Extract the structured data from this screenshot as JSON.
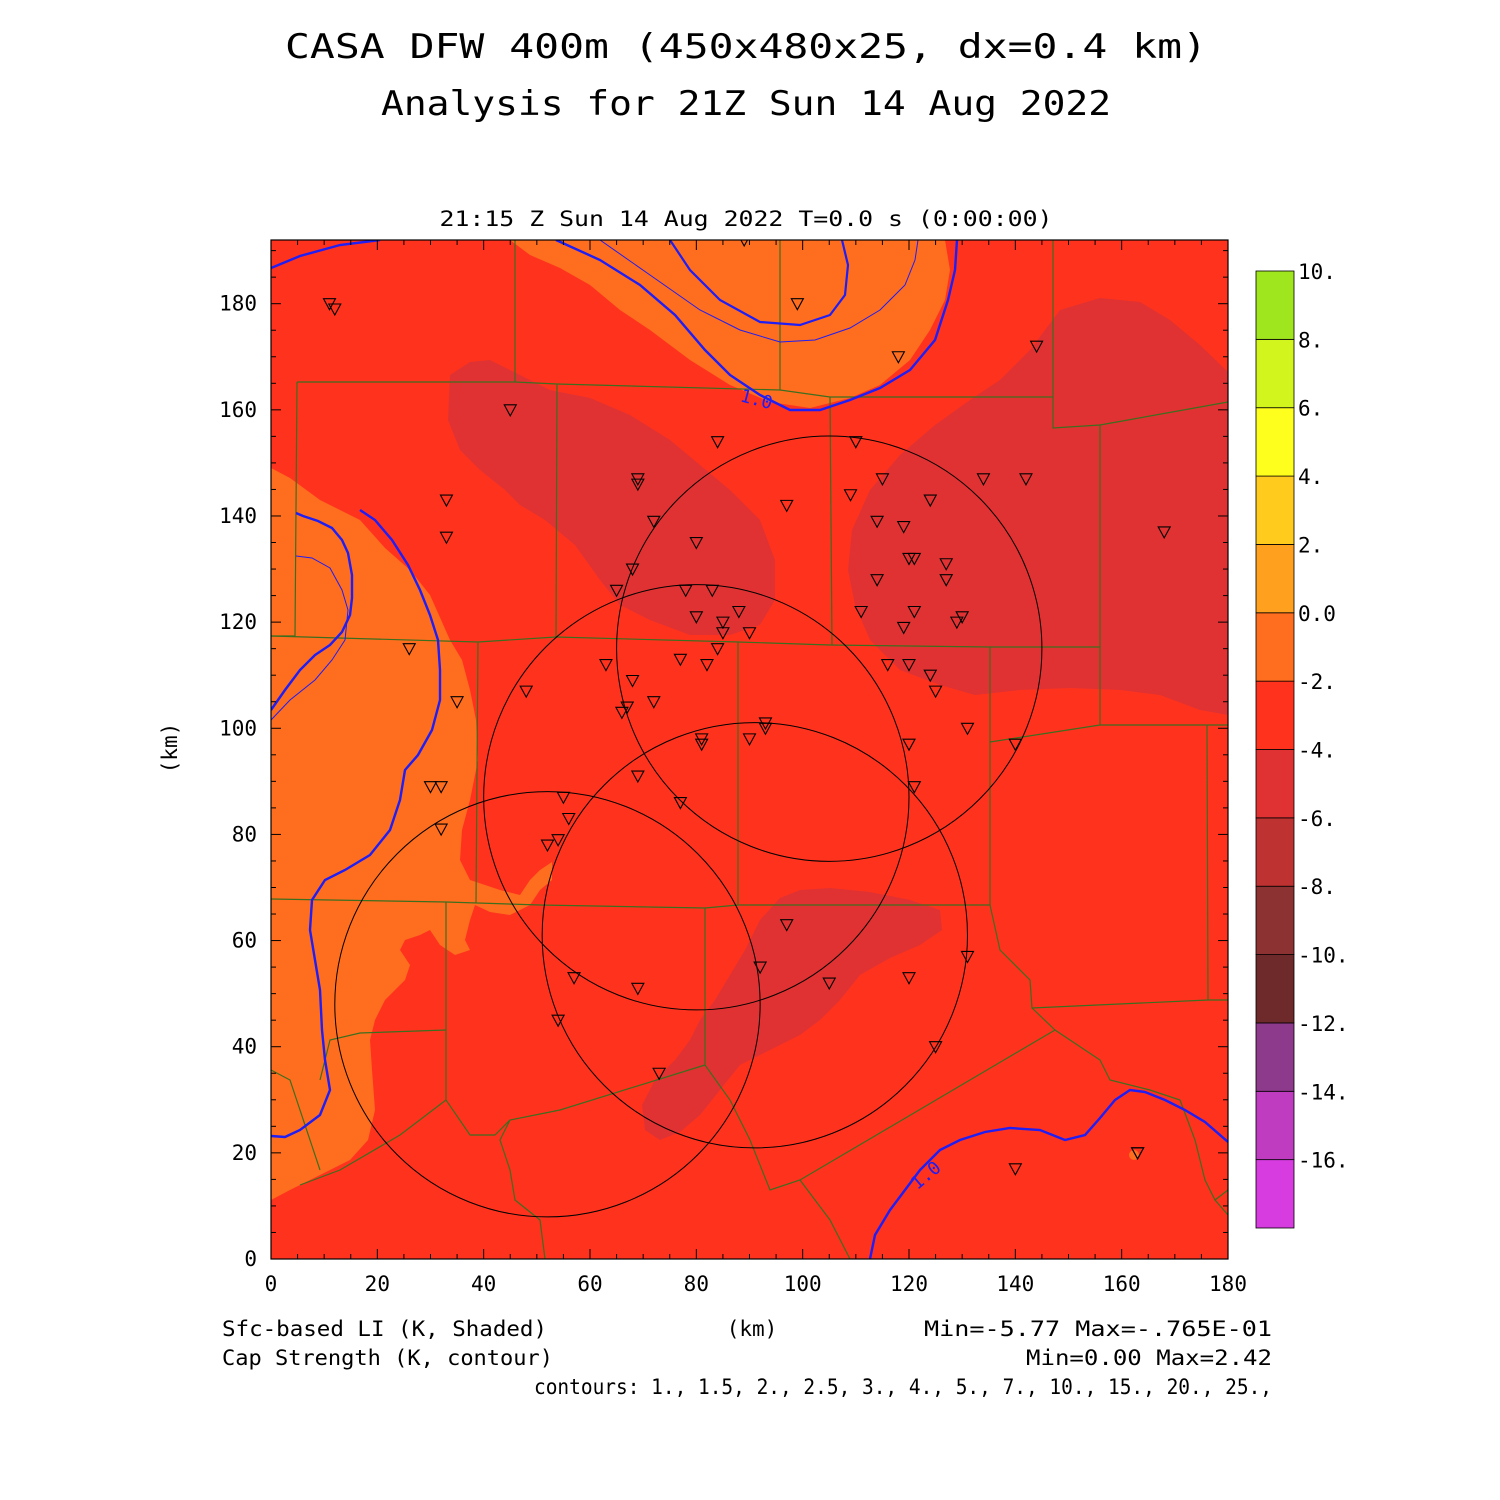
{
  "title_line1": "CASA DFW 400m (450x480x25, dx=0.4 km)",
  "title_line2": "Analysis for 21Z Sun 14 Aug 2022",
  "valid_time": "21:15 Z Sun 14 Aug 2022   T=0.0 s (0:00:00)",
  "xlabel": "(km)",
  "ylabel": "(km)",
  "footer": {
    "shaded_label": "Sfc-based LI (K, Shaded)",
    "contour_label": "Cap Strength (K, contour)",
    "shaded_minmax": "Min=-5.77 Max=-.765E-01",
    "contour_minmax": "Min=0.00 Max=2.42",
    "contours_list": "contours: 1., 1.5, 2., 2.5, 3., 4., 5., 7., 10., 15., 20., 25.,"
  },
  "contour_value_labels": [
    "1.0",
    "1.0"
  ],
  "chart_data": {
    "type": "heatmap",
    "xlim": [
      0,
      180
    ],
    "ylim": [
      0,
      192
    ],
    "x_ticks": [
      0,
      20,
      40,
      60,
      80,
      100,
      120,
      140,
      160,
      180
    ],
    "y_ticks": [
      0,
      20,
      40,
      60,
      80,
      100,
      120,
      140,
      160,
      180
    ],
    "colorbar": {
      "levels": [
        -16,
        -14,
        -12,
        -10,
        -8,
        -6,
        -4,
        -2,
        0,
        2,
        4,
        6,
        8,
        10
      ],
      "tick_labels": [
        "10.",
        "8.",
        "6.",
        "4.",
        "2.",
        "0.0",
        "-2.",
        "-4.",
        "-6.",
        "-8.",
        "-10.",
        "-12.",
        "-14.",
        "-16."
      ],
      "colors": [
        "#d63ce0",
        "#bf3cc0",
        "#8e3a8c",
        "#6e2a2a",
        "#8c3232",
        "#bf3232",
        "#e03232",
        "#ff321e",
        "#ff6e1e",
        "#ffa01e",
        "#ffcc1e",
        "#ffff1e",
        "#d2f51e",
        "#a0e61e"
      ]
    },
    "shaded_regions_level_bands": [
      "-4 to -2",
      "-6 to -4",
      "-2 to 0"
    ],
    "shaded_min": -5.77,
    "shaded_max": -0.0765,
    "contour_min": 0.0,
    "contour_max": 2.42,
    "radar_circles_km": [
      {
        "cx": 52,
        "cy": 48,
        "r": 40
      },
      {
        "cx": 80,
        "cy": 87,
        "r": 40
      },
      {
        "cx": 91,
        "cy": 61,
        "r": 40
      },
      {
        "cx": 105,
        "cy": 115,
        "r": 40
      }
    ],
    "stations_km": [
      [
        89,
        192
      ],
      [
        11,
        180
      ],
      [
        12,
        179
      ],
      [
        99,
        180
      ],
      [
        118,
        170
      ],
      [
        144,
        172
      ],
      [
        45,
        160
      ],
      [
        84,
        154
      ],
      [
        110,
        154
      ],
      [
        69,
        147
      ],
      [
        69,
        146
      ],
      [
        115,
        147
      ],
      [
        134,
        147
      ],
      [
        142,
        147
      ],
      [
        33,
        143
      ],
      [
        97,
        142
      ],
      [
        109,
        144
      ],
      [
        124,
        143
      ],
      [
        72,
        139
      ],
      [
        114,
        139
      ],
      [
        119,
        138
      ],
      [
        168,
        137
      ],
      [
        33,
        136
      ],
      [
        80,
        135
      ],
      [
        121,
        132
      ],
      [
        120,
        132
      ],
      [
        127,
        131
      ],
      [
        68,
        130
      ],
      [
        127,
        128
      ],
      [
        114,
        128
      ],
      [
        65,
        126
      ],
      [
        78,
        126
      ],
      [
        83,
        126
      ],
      [
        88,
        122
      ],
      [
        121,
        122
      ],
      [
        111,
        122
      ],
      [
        130,
        121
      ],
      [
        129,
        120
      ],
      [
        80,
        121
      ],
      [
        85,
        120
      ],
      [
        119,
        119
      ],
      [
        85,
        118
      ],
      [
        90,
        118
      ],
      [
        84,
        115
      ],
      [
        26,
        115
      ],
      [
        63,
        112
      ],
      [
        77,
        113
      ],
      [
        82,
        112
      ],
      [
        116,
        112
      ],
      [
        120,
        112
      ],
      [
        124,
        110
      ],
      [
        68,
        109
      ],
      [
        48,
        107
      ],
      [
        125,
        107
      ],
      [
        35,
        105
      ],
      [
        72,
        105
      ],
      [
        67,
        104
      ],
      [
        66,
        103
      ],
      [
        93,
        101
      ],
      [
        93,
        100
      ],
      [
        131,
        100
      ],
      [
        81,
        98
      ],
      [
        81,
        97
      ],
      [
        90,
        98
      ],
      [
        120,
        97
      ],
      [
        140,
        97
      ],
      [
        69,
        91
      ],
      [
        30,
        89
      ],
      [
        32,
        89
      ],
      [
        121,
        89
      ],
      [
        55,
        87
      ],
      [
        77,
        86
      ],
      [
        56,
        83
      ],
      [
        32,
        81
      ],
      [
        54,
        79
      ],
      [
        52,
        78
      ],
      [
        97,
        63
      ],
      [
        131,
        57
      ],
      [
        92,
        55
      ],
      [
        57,
        53
      ],
      [
        69,
        51
      ],
      [
        105,
        52
      ],
      [
        120,
        53
      ],
      [
        54,
        45
      ],
      [
        125,
        40
      ],
      [
        73,
        35
      ],
      [
        163,
        20
      ],
      [
        163,
        20
      ],
      [
        140,
        17
      ]
    ]
  }
}
